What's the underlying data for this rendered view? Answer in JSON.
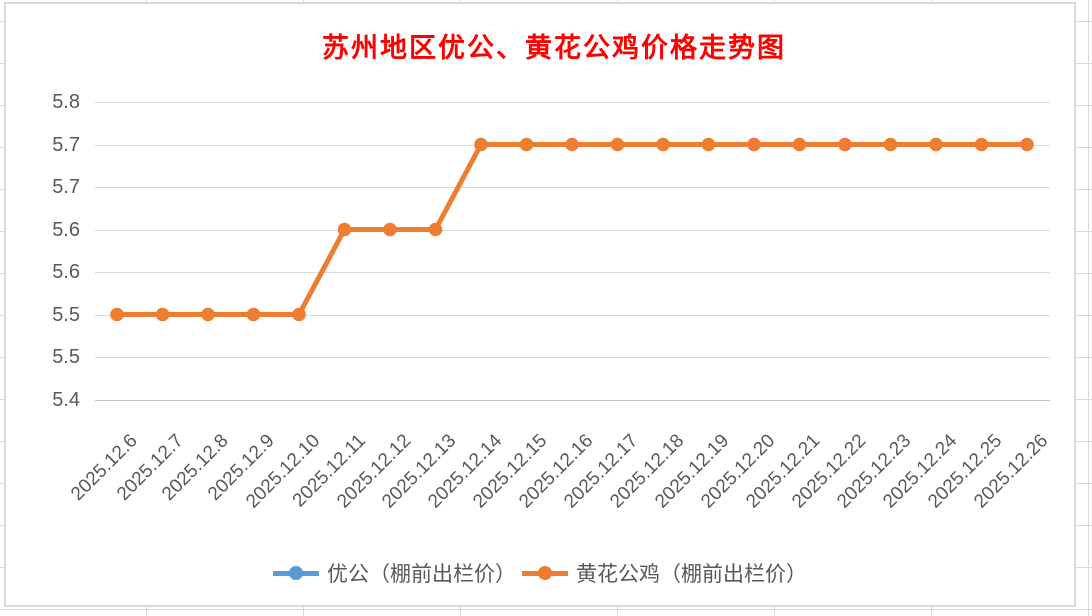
{
  "chart_data": {
    "type": "line",
    "title": "苏州地区优公、黄花公鸡价格走势图",
    "title_color": "#FF0000",
    "categories": [
      "2025.12.6",
      "2025.12.7",
      "2025.12.8",
      "2025.12.9",
      "2025.12.10",
      "2025.12.11",
      "2025.12.12",
      "2025.12.13",
      "2025.12.14",
      "2025.12.15",
      "2025.12.16",
      "2025.12.17",
      "2025.12.18",
      "2025.12.19",
      "2025.12.20",
      "2025.12.21",
      "2025.12.22",
      "2025.12.23",
      "2025.12.24",
      "2025.12.25",
      "2025.12.26"
    ],
    "series": [
      {
        "name": "优公（棚前出栏价）",
        "color": "#5B9BD5",
        "values": [
          5.5,
          5.5,
          5.5,
          5.5,
          5.5,
          5.6,
          5.6,
          5.6,
          5.7,
          5.7,
          5.7,
          5.7,
          5.7,
          5.7,
          5.7,
          5.7,
          5.7,
          5.7,
          5.7,
          5.7,
          5.7
        ]
      },
      {
        "name": "黄花公鸡（棚前出栏价）",
        "color": "#ED7D31",
        "values": [
          5.5,
          5.5,
          5.5,
          5.5,
          5.5,
          5.6,
          5.6,
          5.6,
          5.7,
          5.7,
          5.7,
          5.7,
          5.7,
          5.7,
          5.7,
          5.7,
          5.7,
          5.7,
          5.7,
          5.7,
          5.7
        ]
      }
    ],
    "y_axis": {
      "min": 5.4,
      "max": 5.75,
      "step": 0.05,
      "tick_labels_top_to_bottom": [
        "5.8",
        "5.7",
        "5.7",
        "5.6",
        "5.6",
        "5.5",
        "5.5",
        "5.4"
      ]
    },
    "x_axis": {
      "label_rotation_deg": 45
    },
    "legend_position": "bottom",
    "grid": true,
    "colors": {
      "gridline": "#D9D9D9",
      "axis_line": "#C0C0C0",
      "axis_text": "#595959",
      "chart_border": "#D9D9D9",
      "sheet_gridline": "#D9D9D9"
    }
  }
}
